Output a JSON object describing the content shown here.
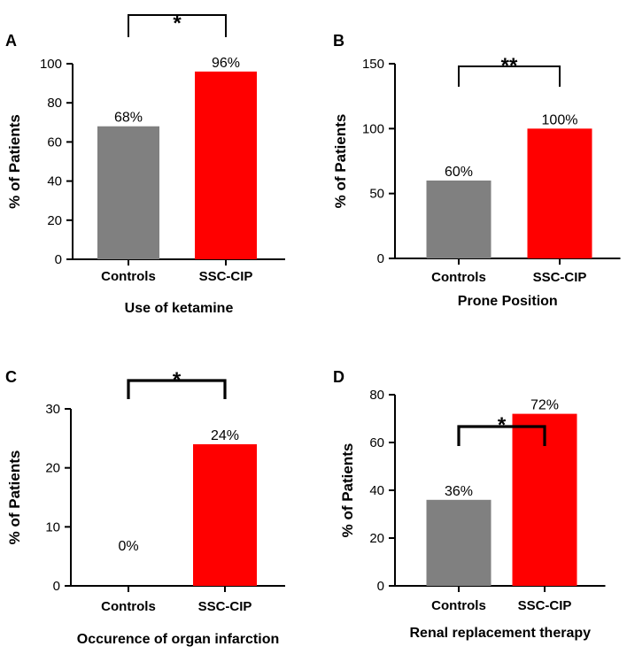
{
  "chart_data": [
    {
      "panel": "A",
      "type": "bar",
      "categories": [
        "Controls",
        "SSC-CIP"
      ],
      "values": [
        68,
        96
      ],
      "data_labels": [
        "68%",
        "96%"
      ],
      "colors": [
        "#808080",
        "#ff0000"
      ],
      "ylabel": "% of Patients",
      "xlabel": "Use of ketamine",
      "ylim": [
        0,
        100
      ],
      "yticks": [
        0,
        20,
        40,
        60,
        80,
        100
      ],
      "significance": "*"
    },
    {
      "panel": "B",
      "type": "bar",
      "categories": [
        "Controls",
        "SSC-CIP"
      ],
      "values": [
        60,
        100
      ],
      "data_labels": [
        "60%",
        "100%"
      ],
      "colors": [
        "#808080",
        "#ff0000"
      ],
      "ylabel": "% of Patients",
      "xlabel": "Prone Position",
      "ylim": [
        0,
        150
      ],
      "yticks": [
        0,
        50,
        100,
        150
      ],
      "significance": "**"
    },
    {
      "panel": "C",
      "type": "bar",
      "categories": [
        "Controls",
        "SSC-CIP"
      ],
      "values": [
        0,
        24
      ],
      "data_labels": [
        "0%",
        "24%"
      ],
      "colors": [
        "#808080",
        "#ff0000"
      ],
      "ylabel": "% of Patients",
      "xlabel": "Occurence of organ infarction",
      "ylim": [
        0,
        30
      ],
      "yticks": [
        0,
        10,
        20,
        30
      ],
      "significance": "*"
    },
    {
      "panel": "D",
      "type": "bar",
      "categories": [
        "Controls",
        "SSC-CIP"
      ],
      "values": [
        36,
        72
      ],
      "data_labels": [
        "36%",
        "72%"
      ],
      "colors": [
        "#808080",
        "#ff0000"
      ],
      "ylabel": "% of Patients",
      "xlabel": "Renal replacement therapy",
      "ylim": [
        0,
        80
      ],
      "yticks": [
        0,
        20,
        40,
        60,
        80
      ],
      "significance": "*"
    }
  ]
}
